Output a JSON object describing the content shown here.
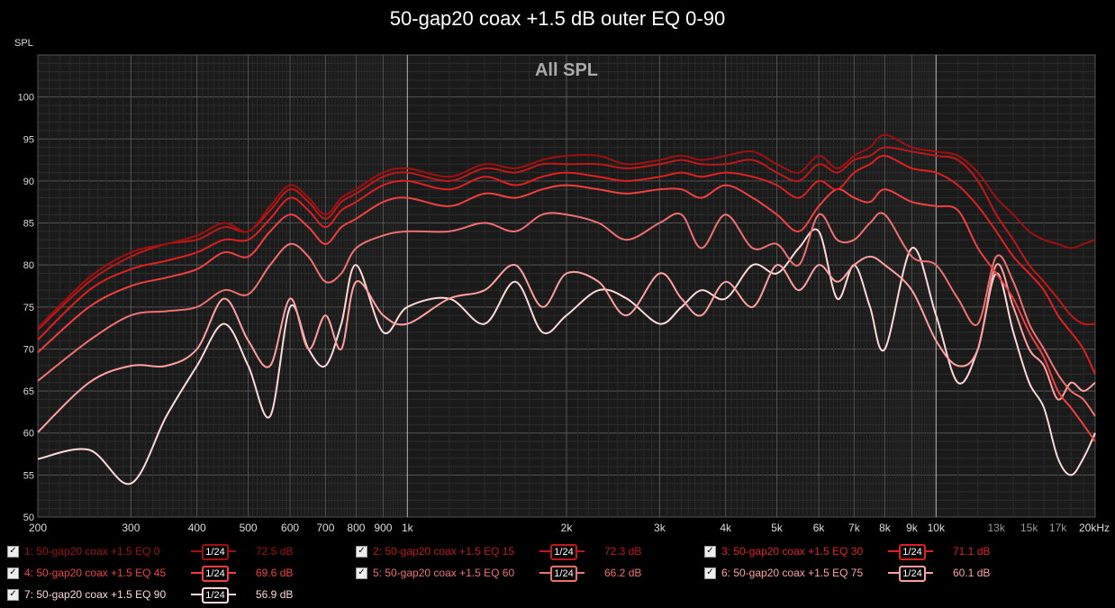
{
  "chart_data": {
    "type": "line",
    "title": "50-gap20 coax +1.5 dB outer EQ 0-90",
    "subtitle": "All SPL",
    "ylabel": "SPL",
    "xlabel": "",
    "x_scale": "log",
    "xlim": [
      200,
      20000
    ],
    "ylim": [
      50,
      105
    ],
    "grid": true,
    "y_ticks": [
      50,
      55,
      60,
      65,
      70,
      75,
      80,
      85,
      90,
      95,
      100
    ],
    "x_tick_labels": [
      {
        "value": 200,
        "label": "200"
      },
      {
        "value": 300,
        "label": "300"
      },
      {
        "value": 400,
        "label": "400"
      },
      {
        "value": 500,
        "label": "500"
      },
      {
        "value": 600,
        "label": "600"
      },
      {
        "value": 700,
        "label": "700"
      },
      {
        "value": 800,
        "label": "800"
      },
      {
        "value": 900,
        "label": "900"
      },
      {
        "value": 1000,
        "label": "1k"
      },
      {
        "value": 2000,
        "label": "2k"
      },
      {
        "value": 3000,
        "label": "3k"
      },
      {
        "value": 4000,
        "label": "4k"
      },
      {
        "value": 5000,
        "label": "5k"
      },
      {
        "value": 6000,
        "label": "6k"
      },
      {
        "value": 7000,
        "label": "7k"
      },
      {
        "value": 8000,
        "label": "8k"
      },
      {
        "value": 9000,
        "label": "9k"
      },
      {
        "value": 10000,
        "label": "10k"
      },
      {
        "value": 13000,
        "label": "13k"
      },
      {
        "value": 15000,
        "label": "15k"
      },
      {
        "value": 17000,
        "label": "17k"
      },
      {
        "value": 20000,
        "label": "20kHz"
      }
    ],
    "x": [
      200,
      250,
      300,
      350,
      400,
      450,
      500,
      550,
      600,
      650,
      700,
      750,
      800,
      900,
      1000,
      1200,
      1400,
      1600,
      1800,
      2000,
      2300,
      2600,
      3000,
      3300,
      3600,
      4000,
      4500,
      5000,
      5500,
      6000,
      6500,
      7000,
      7500,
      8000,
      9000,
      10000,
      11000,
      12000,
      13000,
      14000,
      15000,
      16000,
      17000,
      18000,
      19000,
      20000
    ],
    "series": [
      {
        "name": "1: 50-gap20 coax +1.5 EQ 0",
        "color": "#a01010",
        "values": [
          72.5,
          78.5,
          81.5,
          82.5,
          83.5,
          85,
          84,
          87,
          89.5,
          88,
          86,
          88,
          89,
          91,
          91.5,
          90.5,
          92,
          91.5,
          92.5,
          93,
          93,
          92,
          92.5,
          93,
          92.5,
          93,
          93.5,
          92,
          91,
          93,
          91.5,
          93,
          94,
          95.5,
          94,
          93.5,
          93,
          91,
          88,
          86,
          84,
          83,
          82.5,
          82,
          82.5,
          83
        ]
      },
      {
        "name": "2: 50-gap20 coax +1.5 EQ 15",
        "color": "#c01818",
        "values": [
          72.3,
          78,
          81,
          82.5,
          83,
          84.5,
          84,
          86.5,
          89,
          87.5,
          85.5,
          87.5,
          88.5,
          90.5,
          91,
          90,
          91.5,
          91,
          92,
          92,
          92,
          91.5,
          92,
          92.5,
          92,
          92,
          92.5,
          91,
          90,
          92,
          91,
          92.5,
          93,
          94,
          93.5,
          93,
          92.5,
          90,
          86,
          83,
          80,
          78,
          76,
          74,
          73,
          73
        ]
      },
      {
        "name": "3: 50-gap20 coax +1.5 EQ 30",
        "color": "#e02020",
        "values": [
          71.1,
          77,
          79.5,
          80.5,
          81.5,
          83,
          83,
          85.5,
          88,
          86.5,
          84.5,
          86.5,
          87.5,
          89.5,
          90,
          89,
          90.5,
          89.5,
          90.5,
          91,
          90.5,
          90,
          90.5,
          91,
          90.5,
          91,
          90.5,
          89.5,
          88,
          90,
          89,
          91,
          92,
          93,
          91.5,
          91,
          89.5,
          87,
          84,
          81,
          79,
          77,
          74,
          72,
          70,
          67
        ]
      },
      {
        "name": "4: 50-gap20 coax +1.5 EQ 45",
        "color": "#f04040",
        "values": [
          69.6,
          75,
          77.5,
          78.5,
          79.5,
          81.5,
          81,
          84,
          86,
          84.5,
          82.5,
          84.5,
          85.5,
          87.5,
          88,
          87,
          88.5,
          88,
          89,
          89.5,
          89,
          88.5,
          89,
          89,
          88,
          89.5,
          88,
          86,
          84,
          87,
          89,
          88,
          87.5,
          89,
          87.5,
          87,
          86.5,
          82,
          79,
          76,
          72,
          69,
          65,
          63,
          61,
          59
        ]
      },
      {
        "name": "5: 50-gap20 coax +1.5 EQ 60",
        "color": "#f07070",
        "values": [
          66.2,
          71,
          74,
          74.5,
          75,
          77,
          76.5,
          80,
          82.5,
          81,
          78,
          79,
          82,
          83.5,
          84,
          84,
          85,
          84,
          86,
          86,
          85,
          83,
          85,
          86,
          82,
          86,
          82,
          82.5,
          80,
          86,
          83,
          83,
          85,
          86,
          81,
          80,
          76,
          73,
          81,
          78,
          73,
          70,
          67,
          65,
          64,
          62
        ]
      },
      {
        "name": "6: 50-gap20 coax +1.5 EQ 75",
        "color": "#ffa0a0",
        "values": [
          60.1,
          66,
          68,
          68,
          70,
          76,
          71,
          68,
          76,
          70,
          74,
          70,
          78,
          74,
          73,
          76,
          77,
          80,
          75,
          79,
          78,
          74,
          79,
          76,
          74,
          78,
          75,
          80,
          77,
          80,
          78,
          80,
          81,
          80,
          77,
          71,
          68,
          70,
          80,
          75,
          70,
          68,
          64,
          66,
          65,
          66
        ]
      },
      {
        "name": "7: 50-gap20 coax +1.5 EQ 90",
        "color": "#ffd8d8",
        "values": [
          56.9,
          58,
          54,
          62,
          68,
          73,
          68,
          62,
          75,
          70,
          68,
          73,
          80,
          72,
          75,
          76,
          73,
          78,
          72,
          74,
          77,
          76,
          73,
          75,
          77,
          76,
          80,
          79,
          82,
          84,
          76,
          80,
          75,
          70,
          82,
          74,
          66,
          70,
          79,
          72,
          66,
          63,
          57,
          55,
          57,
          60
        ]
      }
    ]
  },
  "legend": [
    {
      "name": "1: 50-gap20 coax +1.5 EQ 0",
      "smoothing": "1/24",
      "value": "72.5 dB",
      "checked": true,
      "color": "#a01010"
    },
    {
      "name": "2: 50-gap20 coax +1.5 EQ 15",
      "smoothing": "1/24",
      "value": "72.3 dB",
      "checked": true,
      "color": "#c01818"
    },
    {
      "name": "3: 50-gap20 coax +1.5 EQ 30",
      "smoothing": "1/24",
      "value": "71.1 dB",
      "checked": true,
      "color": "#e02020"
    },
    {
      "name": "4: 50-gap20 coax +1.5 EQ 45",
      "smoothing": "1/24",
      "value": "69.6 dB",
      "checked": true,
      "color": "#f04040"
    },
    {
      "name": "5: 50-gap20 coax +1.5 EQ 60",
      "smoothing": "1/24",
      "value": "66.2 dB",
      "checked": true,
      "color": "#f07070"
    },
    {
      "name": "6: 50-gap20 coax +1.5 EQ 75",
      "smoothing": "1/24",
      "value": "60.1 dB",
      "checked": true,
      "color": "#ffa0a0"
    },
    {
      "name": "7: 50-gap20 coax +1.5 EQ 90",
      "smoothing": "1/24",
      "value": "56.9 dB",
      "checked": true,
      "color": "#ffd8d8"
    }
  ]
}
